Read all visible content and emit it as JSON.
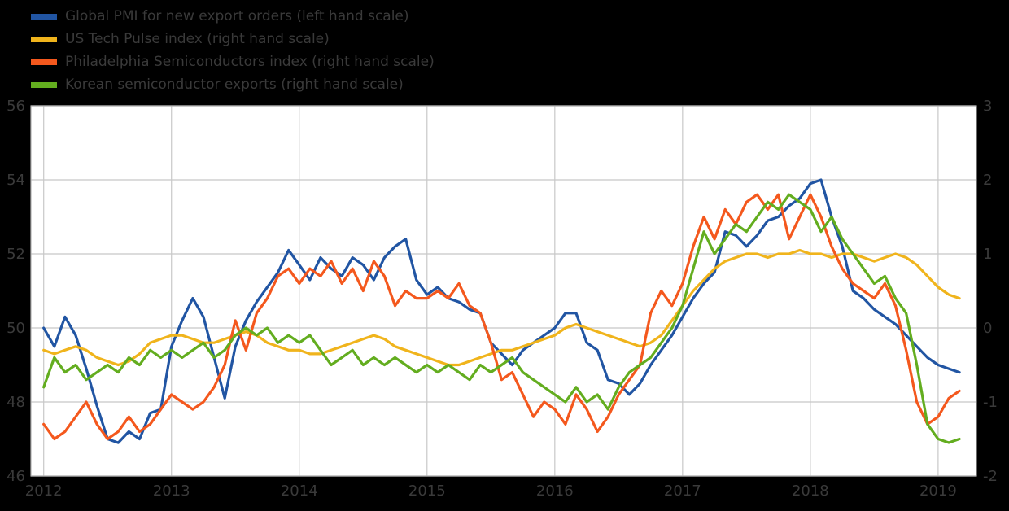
{
  "chart_data": {
    "type": "line",
    "title": "",
    "xlabel": "",
    "ylabel_left": "",
    "ylabel_right": "",
    "grid": true,
    "legend_position": "top-left",
    "plot_background": "#ffffff",
    "page_background": "#000000",
    "grid_color": "#c8c8c8",
    "border_color": "#b0b0b0",
    "tick_label_color": "#3a3a3a",
    "start_year": 2012,
    "points_per_year": 12,
    "x_domain": [
      2011.9,
      2019.3
    ],
    "x_ticks": [
      2012,
      2013,
      2014,
      2015,
      2016,
      2017,
      2018,
      2019
    ],
    "x_tick_labels": [
      "2012",
      "2013",
      "2014",
      "2015",
      "2016",
      "2017",
      "2018",
      "2019"
    ],
    "left_axis": {
      "range": [
        46,
        56
      ],
      "ticks": [
        46,
        48,
        50,
        52,
        54,
        56
      ]
    },
    "right_axis": {
      "range": [
        -2,
        3
      ],
      "ticks": [
        -2,
        -1,
        0,
        1,
        2,
        3
      ]
    },
    "series": [
      {
        "name": "Global PMI for new export orders (left hand scale)",
        "axis": "left",
        "color": "#2155A3",
        "values": [
          50.0,
          49.5,
          50.3,
          49.8,
          48.9,
          47.9,
          47.0,
          46.9,
          47.2,
          47.0,
          47.7,
          47.8,
          49.5,
          50.2,
          50.8,
          50.3,
          49.2,
          48.1,
          49.5,
          50.2,
          50.7,
          51.1,
          51.5,
          52.1,
          51.7,
          51.3,
          51.9,
          51.6,
          51.4,
          51.9,
          51.7,
          51.3,
          51.9,
          52.2,
          52.4,
          51.3,
          50.9,
          51.1,
          50.8,
          50.7,
          50.5,
          50.4,
          49.6,
          49.3,
          49.0,
          49.4,
          49.6,
          49.8,
          50.0,
          50.4,
          50.4,
          49.6,
          49.4,
          48.6,
          48.5,
          48.2,
          48.5,
          49.0,
          49.4,
          49.8,
          50.3,
          50.8,
          51.2,
          51.5,
          52.6,
          52.5,
          52.2,
          52.5,
          52.9,
          53.0,
          53.3,
          53.5,
          53.9,
          54.0,
          53.0,
          52.2,
          51.0,
          50.8,
          50.5,
          50.3,
          50.1,
          49.8,
          49.5,
          49.2,
          49.0,
          48.9,
          48.8
        ]
      },
      {
        "name": "US Tech Pulse index (right hand scale)",
        "axis": "right",
        "color": "#F0B41C",
        "values": [
          -0.3,
          -0.35,
          -0.3,
          -0.25,
          -0.3,
          -0.4,
          -0.45,
          -0.5,
          -0.45,
          -0.35,
          -0.2,
          -0.15,
          -0.1,
          -0.1,
          -0.15,
          -0.2,
          -0.2,
          -0.15,
          -0.1,
          -0.05,
          -0.1,
          -0.2,
          -0.25,
          -0.3,
          -0.3,
          -0.35,
          -0.35,
          -0.3,
          -0.25,
          -0.2,
          -0.15,
          -0.1,
          -0.15,
          -0.25,
          -0.3,
          -0.35,
          -0.4,
          -0.45,
          -0.5,
          -0.5,
          -0.45,
          -0.4,
          -0.35,
          -0.3,
          -0.3,
          -0.25,
          -0.2,
          -0.15,
          -0.1,
          0.0,
          0.05,
          0.0,
          -0.05,
          -0.1,
          -0.15,
          -0.2,
          -0.25,
          -0.2,
          -0.1,
          0.1,
          0.3,
          0.5,
          0.65,
          0.8,
          0.9,
          0.95,
          1.0,
          1.0,
          0.95,
          1.0,
          1.0,
          1.05,
          1.0,
          1.0,
          0.95,
          1.0,
          1.0,
          0.95,
          0.9,
          0.95,
          1.0,
          0.95,
          0.85,
          0.7,
          0.55,
          0.45,
          0.4
        ]
      },
      {
        "name": "Philadelphia Semiconductors index (right hand scale)",
        "axis": "right",
        "color": "#F4581D",
        "values": [
          -1.3,
          -1.5,
          -1.4,
          -1.2,
          -1.0,
          -1.3,
          -1.5,
          -1.4,
          -1.2,
          -1.4,
          -1.3,
          -1.1,
          -0.9,
          -1.0,
          -1.1,
          -1.0,
          -0.8,
          -0.5,
          0.1,
          -0.3,
          0.2,
          0.4,
          0.7,
          0.8,
          0.6,
          0.8,
          0.7,
          0.9,
          0.6,
          0.8,
          0.5,
          0.9,
          0.7,
          0.3,
          0.5,
          0.4,
          0.4,
          0.5,
          0.4,
          0.6,
          0.3,
          0.2,
          -0.2,
          -0.7,
          -0.6,
          -0.9,
          -1.2,
          -1.0,
          -1.1,
          -1.3,
          -0.9,
          -1.1,
          -1.4,
          -1.2,
          -0.9,
          -0.7,
          -0.5,
          0.2,
          0.5,
          0.3,
          0.6,
          1.1,
          1.5,
          1.2,
          1.6,
          1.4,
          1.7,
          1.8,
          1.6,
          1.8,
          1.2,
          1.5,
          1.8,
          1.5,
          1.1,
          0.8,
          0.6,
          0.5,
          0.4,
          0.6,
          0.3,
          -0.3,
          -1.0,
          -1.3,
          -1.2,
          -0.95,
          -0.85
        ]
      },
      {
        "name": "Korean semiconductor exports (right hand scale)",
        "axis": "right",
        "color": "#63AD1F",
        "values": [
          -0.8,
          -0.4,
          -0.6,
          -0.5,
          -0.7,
          -0.6,
          -0.5,
          -0.6,
          -0.4,
          -0.5,
          -0.3,
          -0.4,
          -0.3,
          -0.4,
          -0.3,
          -0.2,
          -0.4,
          -0.3,
          -0.1,
          0.0,
          -0.1,
          0.0,
          -0.2,
          -0.1,
          -0.2,
          -0.1,
          -0.3,
          -0.5,
          -0.4,
          -0.3,
          -0.5,
          -0.4,
          -0.5,
          -0.4,
          -0.5,
          -0.6,
          -0.5,
          -0.6,
          -0.5,
          -0.6,
          -0.7,
          -0.5,
          -0.6,
          -0.5,
          -0.4,
          -0.6,
          -0.7,
          -0.8,
          -0.9,
          -1.0,
          -0.8,
          -1.0,
          -0.9,
          -1.1,
          -0.8,
          -0.6,
          -0.5,
          -0.4,
          -0.2,
          0.0,
          0.3,
          0.8,
          1.3,
          1.0,
          1.2,
          1.4,
          1.3,
          1.5,
          1.7,
          1.6,
          1.8,
          1.7,
          1.6,
          1.3,
          1.5,
          1.2,
          1.0,
          0.8,
          0.6,
          0.7,
          0.4,
          0.2,
          -0.5,
          -1.3,
          -1.5,
          -1.55,
          -1.5
        ]
      }
    ]
  }
}
